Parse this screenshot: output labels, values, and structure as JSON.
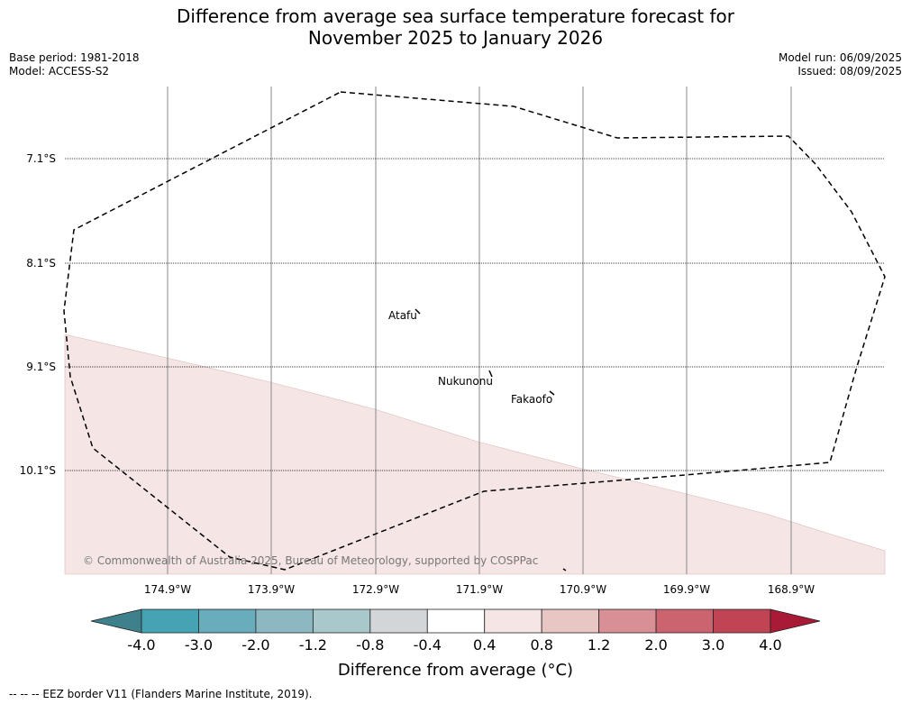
{
  "header": {
    "title_line1": "Difference from average sea surface temperature forecast for",
    "title_line2": "November 2025 to January 2026",
    "base_period": "Base period: 1981-2018",
    "model": "Model: ACCESS-S2",
    "model_run": "Model run: 06/09/2025",
    "issued": "Issued: 08/09/2025"
  },
  "map": {
    "latitude_labels": [
      "7.1°S",
      "8.1°S",
      "9.1°S",
      "10.1°S"
    ],
    "longitude_labels": [
      "174.9°W",
      "173.9°W",
      "172.9°W",
      "171.9°W",
      "170.9°W",
      "169.9°W",
      "168.9°W"
    ],
    "places": [
      {
        "name": "Atafu"
      },
      {
        "name": "Nukunonu"
      },
      {
        "name": "Fakaofo"
      }
    ],
    "copyright": "© Commonwealth of Australia 2025, Bureau of Meteorology, supported by COSPPac",
    "shaded_band_color": "#f5e6e5",
    "eez_line_color": "#000000"
  },
  "colorbar": {
    "tick_labels": [
      "-4.0",
      "-3.0",
      "-2.0",
      "-1.2",
      "-0.8",
      "-0.4",
      "0.4",
      "0.8",
      "1.2",
      "2.0",
      "3.0",
      "4.0"
    ],
    "low_extend_color": "#3e818c",
    "high_extend_color": "#a91a37",
    "segment_colors": [
      "#46a3b3",
      "#69acbc",
      "#8bb8c1",
      "#a9c8cc",
      "#d2d6d8",
      "#ffffff",
      "#f5e6e5",
      "#e8c6c3",
      "#d88f96",
      "#cc6470",
      "#c04454"
    ],
    "title": "Difference from average (°C)"
  },
  "footnote": "--  --  -- EEZ border V11 (Flanders Marine Institute, 2019)."
}
